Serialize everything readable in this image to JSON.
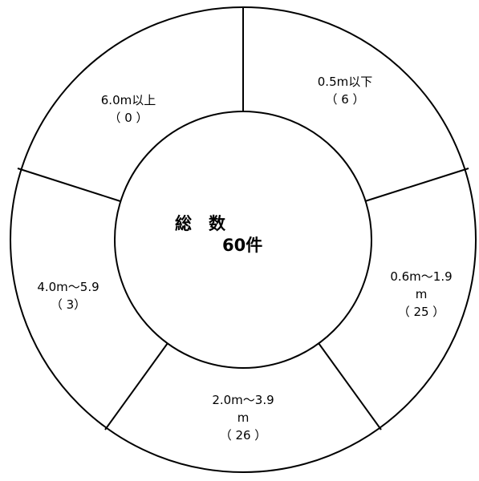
{
  "center": {
    "title": "総　数",
    "total": "60件"
  },
  "segments": [
    {
      "id": "0.5m-below",
      "label": "0.5m以下",
      "count": "（ 6 ）"
    },
    {
      "id": "0.6-1.9m",
      "label_line1": "0.6m～1.9",
      "label_line2": "m",
      "count": "（ 25 ）"
    },
    {
      "id": "2.0-3.9m",
      "label_line1": "2.0m～3.9",
      "label_line2": "m",
      "count": "（ 26 ）"
    },
    {
      "id": "4.0-5.9m",
      "label": "4.0m～5.9",
      "count": "（ 3）"
    },
    {
      "id": "6.0m-above",
      "label": "6.0m以上",
      "count": "（ 0 ）"
    }
  ],
  "colors": {
    "line": "#000000",
    "background": "#ffffff"
  }
}
